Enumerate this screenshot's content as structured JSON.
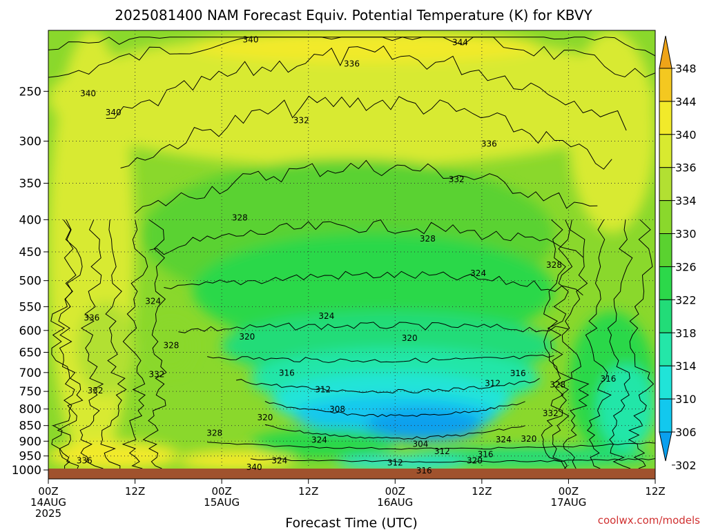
{
  "title": "2025081400 NAM Forecast Equiv. Potential Temperature (K) for KBVY",
  "credit": "coolwx.com/models",
  "colors": {
    "ground": "#a0522d",
    "contour": "#000000",
    "grid": "#333333",
    "credit": "#d03030"
  },
  "chart_data": {
    "type": "heatmap",
    "title": "2025081400 NAM Forecast Equiv. Potential Temperature (K) for KBVY",
    "xlabel": "Forecast Time (UTC)",
    "ylabel": "",
    "y_scale": "log",
    "y_reversed": true,
    "ylim": [
      1000,
      200
    ],
    "xlim_hours": [
      0,
      84
    ],
    "grid": true,
    "x_ticks": [
      {
        "hour": 0,
        "lines": [
          "00Z",
          "14AUG",
          "2025"
        ]
      },
      {
        "hour": 12,
        "lines": [
          "12Z"
        ]
      },
      {
        "hour": 24,
        "lines": [
          "00Z",
          "15AUG"
        ]
      },
      {
        "hour": 36,
        "lines": [
          "12Z"
        ]
      },
      {
        "hour": 48,
        "lines": [
          "00Z",
          "16AUG"
        ]
      },
      {
        "hour": 60,
        "lines": [
          "12Z"
        ]
      },
      {
        "hour": 72,
        "lines": [
          "00Z",
          "17AUG"
        ]
      },
      {
        "hour": 84,
        "lines": [
          "12Z"
        ]
      }
    ],
    "y_ticks": [
      250,
      300,
      350,
      400,
      450,
      500,
      550,
      600,
      650,
      700,
      750,
      800,
      850,
      900,
      950,
      1000
    ],
    "colorbar": {
      "labels": [
        348,
        344,
        340,
        336,
        334,
        330,
        326,
        322,
        318,
        314,
        310,
        306,
        302
      ],
      "levels": [
        302,
        306,
        310,
        314,
        318,
        322,
        326,
        330,
        334,
        336,
        340,
        344,
        348
      ],
      "colors": [
        "#0aa0ee",
        "#12c8ee",
        "#20e4d8",
        "#24e6a8",
        "#22dc78",
        "#2cd84a",
        "#5ad230",
        "#8ad82c",
        "#b2e032",
        "#d8ea30",
        "#f2ea2a",
        "#f4c820",
        "#eea418"
      ],
      "extend": "both"
    },
    "contour_labels": [
      {
        "text": "340",
        "hour": 28.0,
        "p": 207
      },
      {
        "text": "344",
        "hour": 57.0,
        "p": 209
      },
      {
        "text": "336",
        "hour": 42.0,
        "p": 226
      },
      {
        "text": "340",
        "hour": 5.5,
        "p": 252
      },
      {
        "text": "340",
        "hour": 9.0,
        "p": 270
      },
      {
        "text": "332",
        "hour": 35.0,
        "p": 278
      },
      {
        "text": "336",
        "hour": 61.0,
        "p": 303
      },
      {
        "text": "332",
        "hour": 56.5,
        "p": 345
      },
      {
        "text": "328",
        "hour": 26.5,
        "p": 397
      },
      {
        "text": "328",
        "hour": 52.5,
        "p": 429
      },
      {
        "text": "328",
        "hour": 70.0,
        "p": 472
      },
      {
        "text": "324",
        "hour": 59.5,
        "p": 487
      },
      {
        "text": "324",
        "hour": 14.5,
        "p": 539
      },
      {
        "text": "324",
        "hour": 38.5,
        "p": 569
      },
      {
        "text": "336",
        "hour": 6.0,
        "p": 573
      },
      {
        "text": "320",
        "hour": 27.5,
        "p": 614
      },
      {
        "text": "320",
        "hour": 50.0,
        "p": 617
      },
      {
        "text": "328",
        "hour": 17.0,
        "p": 634
      },
      {
        "text": "316",
        "hour": 33.0,
        "p": 701
      },
      {
        "text": "332",
        "hour": 15.0,
        "p": 705
      },
      {
        "text": "316",
        "hour": 65.0,
        "p": 702
      },
      {
        "text": "316",
        "hour": 77.5,
        "p": 716
      },
      {
        "text": "312",
        "hour": 38.0,
        "p": 745
      },
      {
        "text": "312",
        "hour": 61.5,
        "p": 728
      },
      {
        "text": "328",
        "hour": 70.5,
        "p": 732
      },
      {
        "text": "332",
        "hour": 6.5,
        "p": 748
      },
      {
        "text": "308",
        "hour": 40.0,
        "p": 801
      },
      {
        "text": "320",
        "hour": 30.0,
        "p": 825
      },
      {
        "text": "332",
        "hour": 69.5,
        "p": 813
      },
      {
        "text": "328",
        "hour": 23.0,
        "p": 874
      },
      {
        "text": "324",
        "hour": 37.5,
        "p": 896
      },
      {
        "text": "304",
        "hour": 51.5,
        "p": 910
      },
      {
        "text": "324",
        "hour": 63.0,
        "p": 895
      },
      {
        "text": "320",
        "hour": 66.5,
        "p": 893
      },
      {
        "text": "312",
        "hour": 54.5,
        "p": 934
      },
      {
        "text": "316",
        "hour": 60.5,
        "p": 945
      },
      {
        "text": "324",
        "hour": 32.0,
        "p": 966
      },
      {
        "text": "336",
        "hour": 5.0,
        "p": 966
      },
      {
        "text": "312",
        "hour": 48.0,
        "p": 974
      },
      {
        "text": "320",
        "hour": 59.0,
        "p": 966
      },
      {
        "text": "340",
        "hour": 28.5,
        "p": 990
      },
      {
        "text": "316",
        "hour": 52.0,
        "p": 1003
      }
    ]
  }
}
